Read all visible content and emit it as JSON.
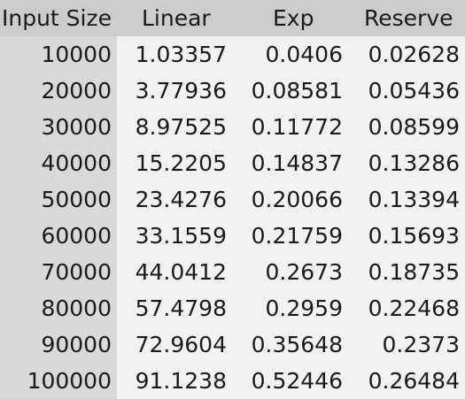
{
  "table": {
    "columns": [
      "Input Size",
      "Linear",
      "Exp",
      "Reserve"
    ],
    "rows": [
      [
        "10000",
        "1.03357",
        "0.0406",
        "0.02628"
      ],
      [
        "20000",
        "3.77936",
        "0.08581",
        "0.05436"
      ],
      [
        "30000",
        "8.97525",
        "0.11772",
        "0.08599"
      ],
      [
        "40000",
        "15.2205",
        "0.14837",
        "0.13286"
      ],
      [
        "50000",
        "23.4276",
        "0.20066",
        "0.13394"
      ],
      [
        "60000",
        "33.1559",
        "0.21759",
        "0.15693"
      ],
      [
        "70000",
        "44.0412",
        "0.2673",
        "0.18735"
      ],
      [
        "80000",
        "57.4798",
        "0.2959",
        "0.22468"
      ],
      [
        "90000",
        "72.9604",
        "0.35648",
        "0.2373"
      ],
      [
        "100000",
        "91.1238",
        "0.52446",
        "0.26484"
      ]
    ]
  }
}
